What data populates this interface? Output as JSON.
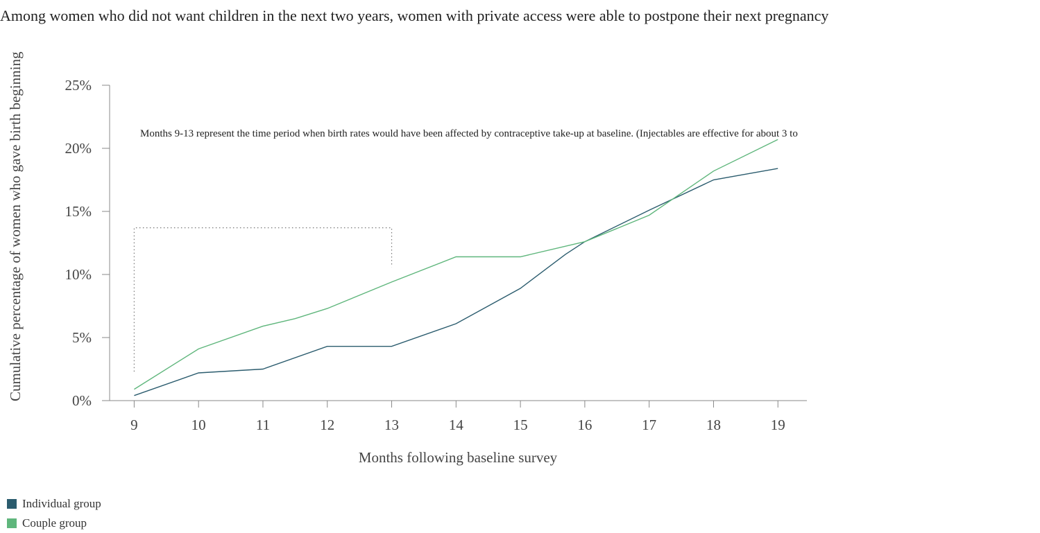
{
  "title": "Among women who did not want children in the next two years, women with private access were able to postpone their next pregnancy",
  "chart_data": {
    "type": "line",
    "title": "Among women who did not want children in the next two years, women with private access were able to postpone their next pregnancy",
    "xlabel": "Months following baseline survey",
    "ylabel": "Cumulative percentage of women who gave birth beginning",
    "x_ticks": [
      9,
      10,
      11,
      12,
      13,
      14,
      15,
      16,
      17,
      18,
      19
    ],
    "y_ticks": [
      0,
      5,
      10,
      15,
      20,
      25
    ],
    "y_tick_labels": [
      "0%",
      "5%",
      "10%",
      "15%",
      "20%",
      "25%"
    ],
    "xlim": [
      8.5,
      19.45
    ],
    "ylim": [
      0,
      25
    ],
    "grid": false,
    "legend_position": "bottom-left",
    "annotation": "Months 9-13 represent the time period when birth rates would have been affected by contraceptive take-up at baseline. (Injectables are effective for about 3 to",
    "series": [
      {
        "name": "Individual group",
        "color": "#2b5c6e",
        "x": [
          9,
          10,
          11,
          12,
          13,
          14,
          15,
          15.7,
          16,
          17,
          18,
          19
        ],
        "y": [
          0.4,
          2.2,
          2.5,
          4.3,
          4.3,
          6.1,
          8.9,
          11.6,
          12.6,
          15.1,
          17.5,
          18.4
        ]
      },
      {
        "name": "Couple group",
        "color": "#5fb67c",
        "x": [
          9,
          10,
          11,
          11.5,
          12,
          13,
          14,
          15,
          16,
          17,
          18,
          19
        ],
        "y": [
          0.9,
          4.1,
          5.9,
          6.5,
          7.3,
          9.4,
          11.4,
          11.4,
          12.6,
          14.7,
          18.2,
          20.7
        ]
      }
    ]
  }
}
